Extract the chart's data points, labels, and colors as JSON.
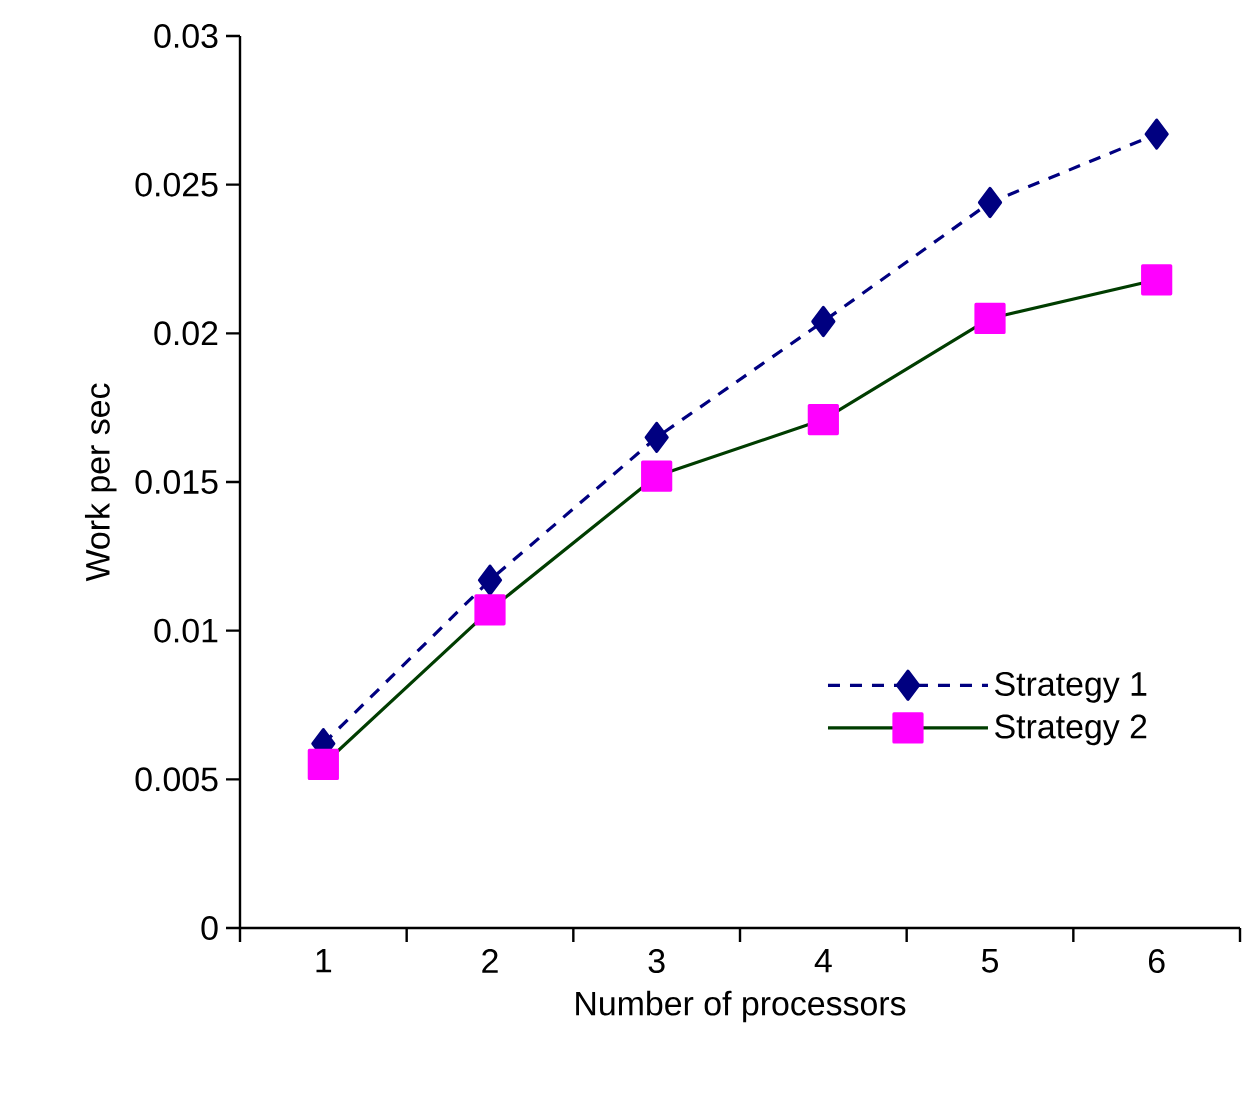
{
  "chart_data": {
    "type": "line",
    "xlabel": "Number of processors",
    "ylabel": "Work per sec",
    "categories": [
      "1",
      "2",
      "3",
      "4",
      "5",
      "6"
    ],
    "series": [
      {
        "name": "Strategy 1",
        "color": "#000080",
        "marker": "diamond",
        "line_style": "dashed",
        "values": [
          0.0062,
          0.0117,
          0.0165,
          0.0204,
          0.0244,
          0.0267
        ]
      },
      {
        "name": "Strategy 2",
        "color": "#ff00ff",
        "marker": "square",
        "line_style": "solid",
        "values": [
          0.0055,
          0.0107,
          0.0152,
          0.0171,
          0.0205,
          0.0218
        ]
      }
    ],
    "ylim": [
      0,
      0.03
    ],
    "yticks": [
      0,
      0.005,
      0.01,
      0.015,
      0.02,
      0.025,
      0.03
    ],
    "grid": false,
    "legend": "right"
  }
}
